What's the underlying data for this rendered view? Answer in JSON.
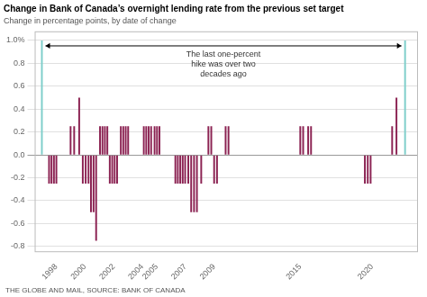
{
  "chart_data": {
    "type": "bar",
    "title": "Change in Bank of Canada’s overnight lending rate from the previous set target",
    "subtitle": "Change in percentage points, by date of change",
    "footer": "THE GLOBE AND MAIL, SOURCE: BANK OF CANADA",
    "annotation": "The last one-percent\nhike was over two\ndecades ago",
    "x": [
      1997.0,
      1997.5,
      1997.67,
      1997.84,
      1998.01,
      1999.0,
      1999.25,
      1999.6,
      1999.85,
      2000.05,
      2000.25,
      2000.42,
      2000.6,
      2000.78,
      2001.05,
      2001.22,
      2001.39,
      2001.56,
      2001.73,
      2001.9,
      2002.07,
      2002.24,
      2002.5,
      2002.67,
      2002.84,
      2003.01,
      2004.1,
      2004.27,
      2004.44,
      2004.61,
      2004.85,
      2005.02,
      2005.19,
      2006.3,
      2006.47,
      2006.64,
      2006.81,
      2006.98,
      2007.2,
      2007.4,
      2007.6,
      2007.8,
      2008.1,
      2008.6,
      2008.8,
      2009.0,
      2009.2,
      2009.8,
      2010.0,
      2015.0,
      2015.2,
      2015.55,
      2015.75,
      2019.5,
      2019.7,
      2019.9,
      2021.4,
      2021.7,
      2022.3
    ],
    "values": [
      1.0,
      -0.25,
      -0.25,
      -0.25,
      -0.25,
      0.25,
      0.25,
      0.5,
      -0.25,
      -0.25,
      -0.25,
      -0.5,
      -0.5,
      -0.75,
      0.25,
      0.25,
      0.25,
      0.25,
      -0.25,
      -0.25,
      -0.25,
      -0.25,
      0.25,
      0.25,
      0.25,
      0.25,
      0.25,
      0.25,
      0.25,
      0.25,
      0.25,
      0.25,
      0.25,
      -0.25,
      -0.25,
      -0.25,
      -0.25,
      -0.25,
      -0.25,
      -0.5,
      -0.5,
      -0.5,
      -0.25,
      0.25,
      0.25,
      -0.25,
      -0.25,
      0.25,
      0.25,
      0.25,
      0.25,
      0.25,
      0.25,
      -0.25,
      -0.25,
      -0.25,
      0.25,
      0.5,
      1.0
    ],
    "colors": [
      "#7ECECA",
      "#8B2252",
      "#8B2252",
      "#8B2252",
      "#8B2252",
      "#8B2252",
      "#8B2252",
      "#8B2252",
      "#8B2252",
      "#8B2252",
      "#8B2252",
      "#8B2252",
      "#8B2252",
      "#8B2252",
      "#8B2252",
      "#8B2252",
      "#8B2252",
      "#8B2252",
      "#8B2252",
      "#8B2252",
      "#8B2252",
      "#8B2252",
      "#8B2252",
      "#8B2252",
      "#8B2252",
      "#8B2252",
      "#8B2252",
      "#8B2252",
      "#8B2252",
      "#8B2252",
      "#8B2252",
      "#8B2252",
      "#8B2252",
      "#8B2252",
      "#8B2252",
      "#8B2252",
      "#8B2252",
      "#8B2252",
      "#8B2252",
      "#8B2252",
      "#8B2252",
      "#8B2252",
      "#8B2252",
      "#8B2252",
      "#8B2252",
      "#8B2252",
      "#8B2252",
      "#8B2252",
      "#8B2252",
      "#8B2252",
      "#8B2252",
      "#8B2252",
      "#8B2252",
      "#8B2252",
      "#8B2252",
      "#8B2252",
      "#8B2252",
      "#8B2252",
      "#7ECECA"
    ],
    "xlim": [
      1996.5,
      2023.2
    ],
    "xticks": [
      1998,
      2000,
      2002,
      2004,
      2005,
      2007,
      2009,
      2015,
      2020
    ],
    "ylim": [
      -0.85,
      1.08
    ],
    "yticks": [
      -0.8,
      -0.6,
      -0.4,
      -0.2,
      {
        "value": 0.0,
        "label": "0.0"
      },
      0.2,
      0.4,
      0.6,
      0.8,
      {
        "value": 1.0,
        "label": "1.0%"
      }
    ],
    "grid": true
  }
}
